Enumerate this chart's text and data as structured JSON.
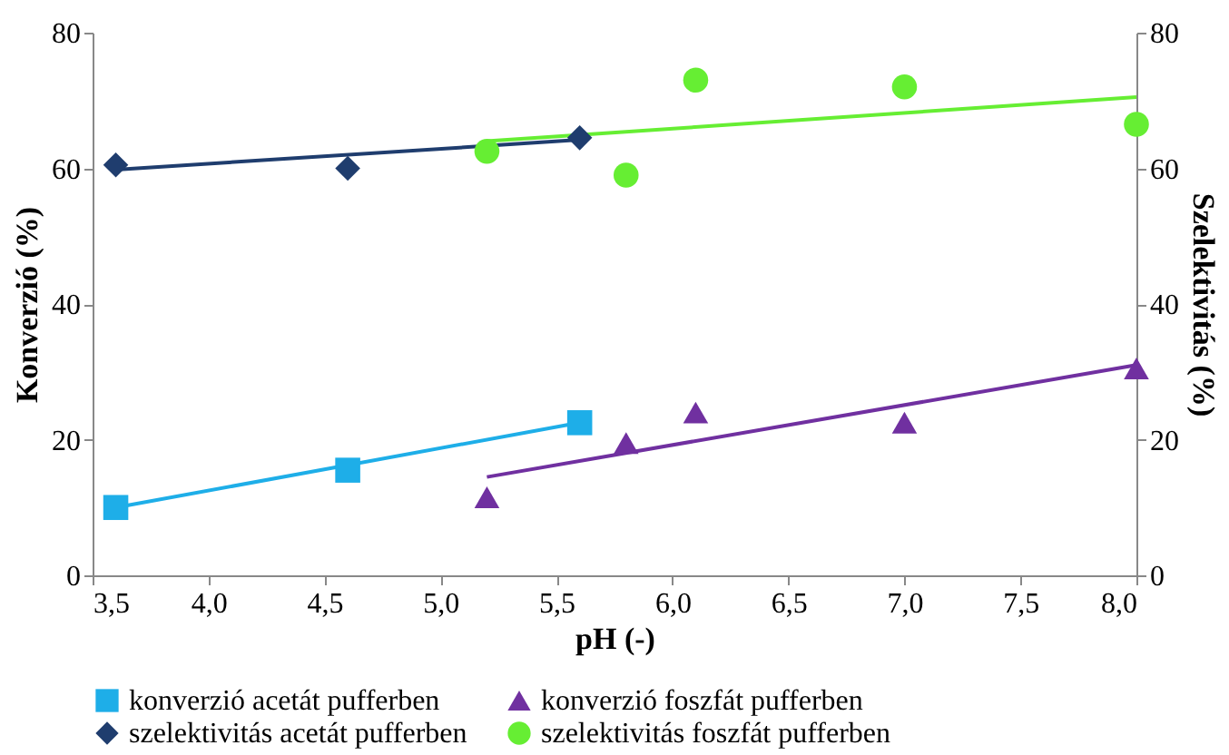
{
  "chart_data": {
    "type": "scatter",
    "xlabel": "pH (-)",
    "ylabel": "Konverzió (%)",
    "y2label": "Szelektivitás (%)",
    "xlim": [
      3.5,
      8.0
    ],
    "xticks": [
      {
        "value": 3.5,
        "label": "3,5"
      },
      {
        "value": 4.0,
        "label": "4,0"
      },
      {
        "value": 4.5,
        "label": "4,5"
      },
      {
        "value": 5.0,
        "label": "5,0"
      },
      {
        "value": 5.5,
        "label": "5,5"
      },
      {
        "value": 6.0,
        "label": "6,0"
      },
      {
        "value": 6.5,
        "label": "6,5"
      },
      {
        "value": 7.0,
        "label": "7,0"
      },
      {
        "value": 7.5,
        "label": "7,5"
      },
      {
        "value": 8.0,
        "label": "8,0"
      }
    ],
    "ylim": [
      0,
      80
    ],
    "yticks": [
      0,
      20,
      40,
      60,
      80
    ],
    "y2lim": [
      0,
      80
    ],
    "y2ticks": [
      0,
      20,
      40,
      60,
      80
    ],
    "legend": "bottom",
    "grid": false,
    "series": [
      {
        "name": "konverzió acetát pufferben",
        "color": "#1eaee8",
        "marker": "square",
        "x": [
          3.6,
          4.6,
          5.6
        ],
        "values": [
          10,
          15.5,
          22.5
        ]
      },
      {
        "name": "konverzió foszfát pufferben",
        "color": "#7030a0",
        "marker": "triangle",
        "x": [
          5.2,
          5.8,
          6.1,
          7.0,
          8.0
        ],
        "values": [
          11.5,
          19.5,
          24,
          22.5,
          30.5
        ]
      },
      {
        "name": "szelektivitás acetát pufferben",
        "color": "#1f3d6e",
        "marker": "diamond",
        "axis": "y2",
        "x": [
          3.6,
          4.6,
          5.6
        ],
        "values": [
          60.5,
          60,
          64.5
        ]
      },
      {
        "name": "szelektivitás foszfát pufferben",
        "color": "#66ee33",
        "marker": "circle",
        "axis": "y2",
        "x": [
          5.2,
          5.8,
          6.1,
          7.0,
          8.0
        ],
        "values": [
          62.5,
          59,
          73,
          72,
          66.5
        ]
      },
      {
        "type": "line",
        "color": "#1eaee8",
        "x": [
          3.6,
          5.6
        ],
        "values": [
          10,
          22.5
        ]
      },
      {
        "type": "line",
        "color": "#7030a0",
        "x": [
          5.2,
          8.0
        ],
        "values": [
          14.5,
          31
        ]
      },
      {
        "type": "line",
        "color": "#1f3d6e",
        "axis": "y2",
        "x": [
          3.6,
          5.6
        ],
        "values": [
          59.8,
          64.2
        ]
      },
      {
        "type": "line",
        "color": "#66ee33",
        "axis": "y2",
        "x": [
          5.2,
          8.0
        ],
        "values": [
          64,
          70.5
        ]
      }
    ]
  }
}
